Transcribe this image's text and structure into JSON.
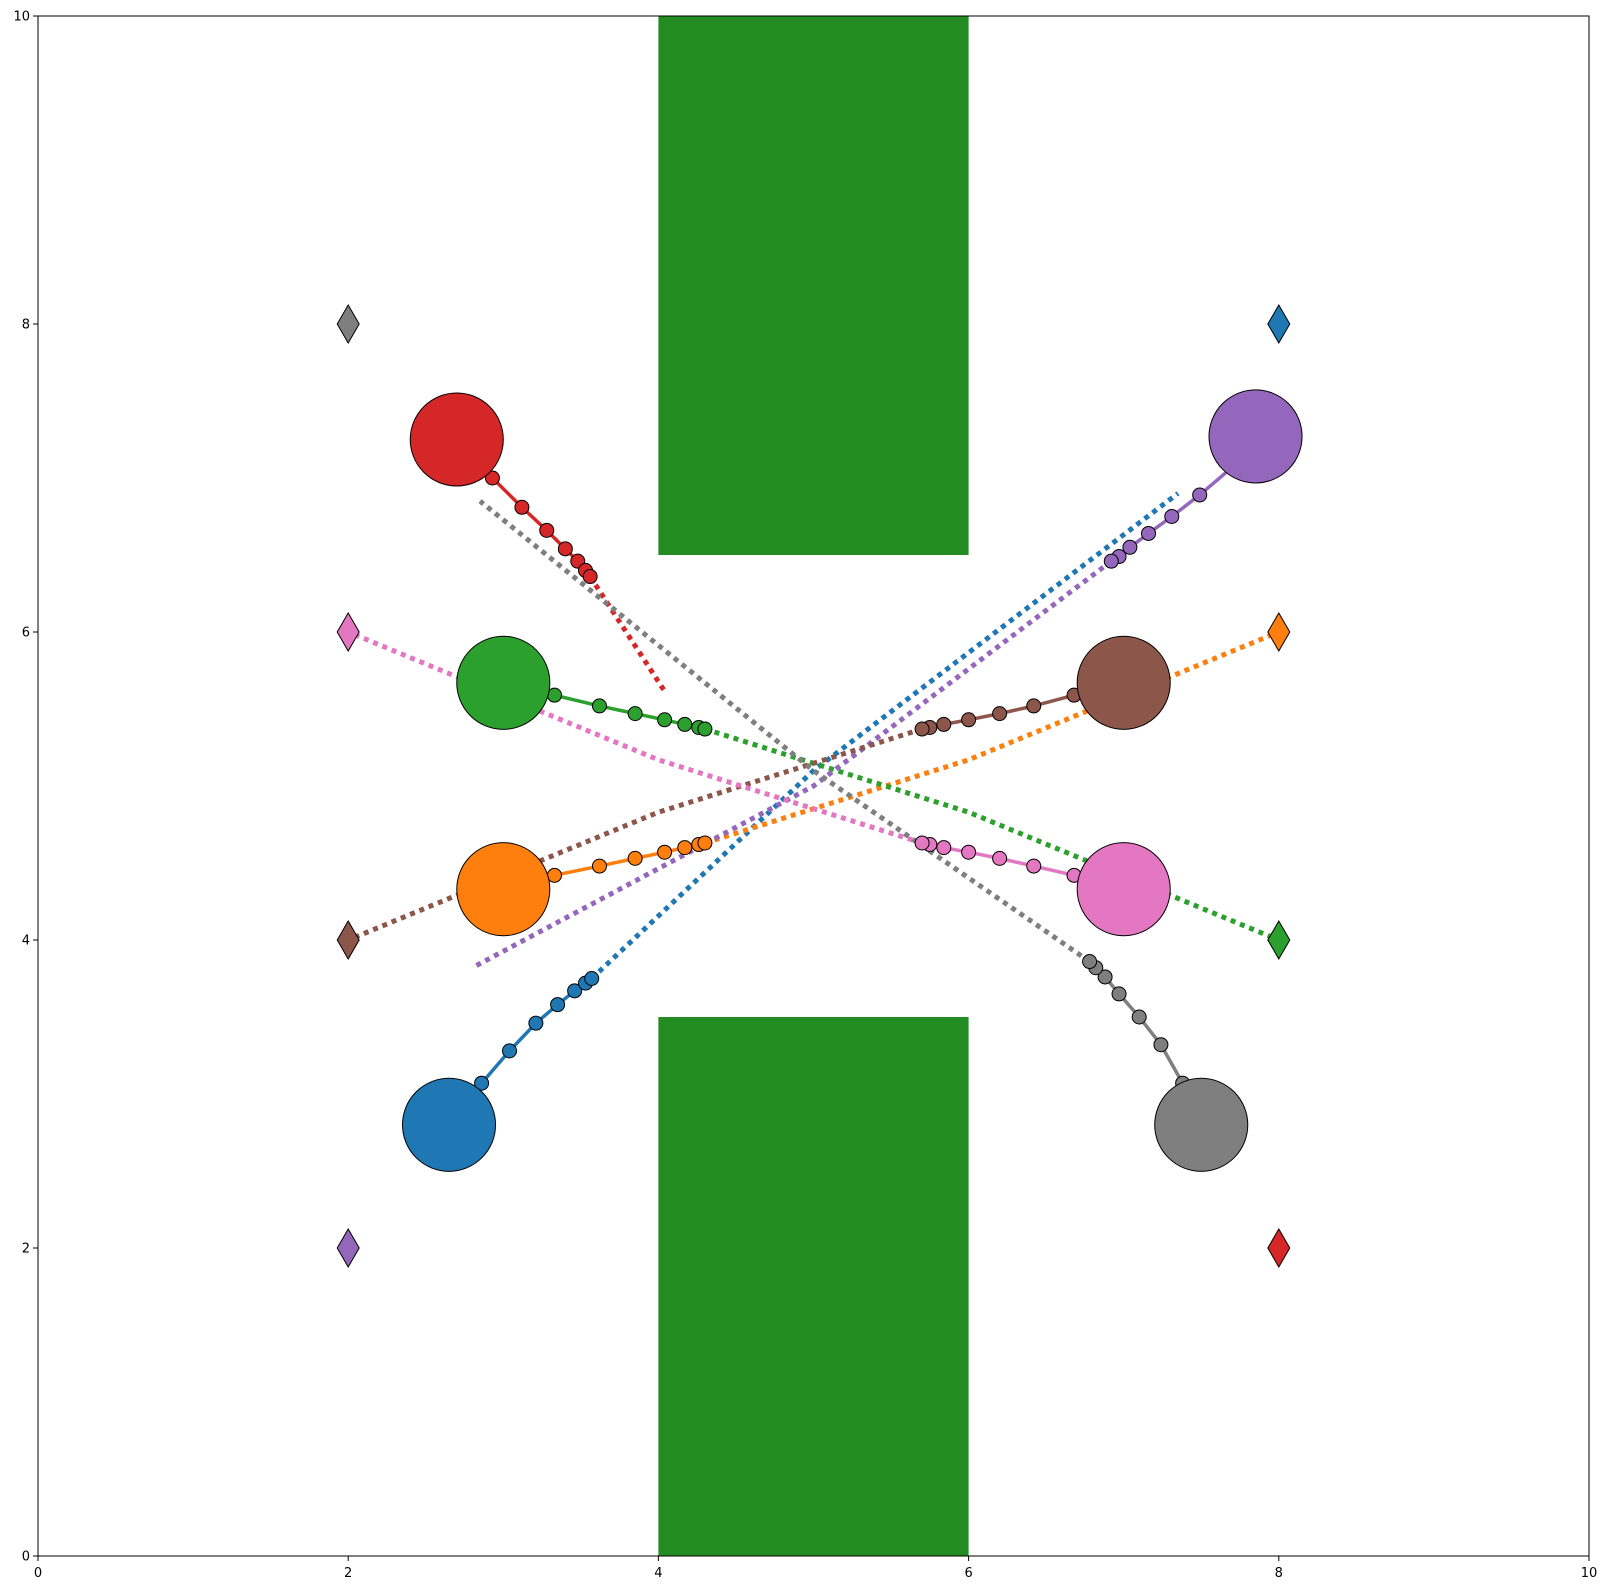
{
  "chart_data": {
    "type": "scatter",
    "title": "",
    "xlabel": "",
    "ylabel": "",
    "xlim": [
      0,
      10
    ],
    "ylim": [
      0,
      10
    ],
    "xticks": [
      "0",
      "2",
      "4",
      "6",
      "8",
      "10"
    ],
    "yticks": [
      "0",
      "2",
      "4",
      "6",
      "8",
      "10"
    ],
    "grid": false,
    "obstacles": [
      {
        "x": [
          4,
          6
        ],
        "y": [
          6.5,
          10
        ],
        "color": "#228B22"
      },
      {
        "x": [
          4,
          6
        ],
        "y": [
          0,
          3.5
        ],
        "color": "#228B22"
      }
    ],
    "agents": [
      {
        "color": "#1f77b4",
        "agent": {
          "x": 2.65,
          "y": 2.8,
          "radius": 0.3
        },
        "goal": {
          "x": 8,
          "y": 8
        },
        "trajectory": [
          [
            2.86,
            3.07
          ],
          [
            3.04,
            3.28
          ],
          [
            3.21,
            3.46
          ],
          [
            3.35,
            3.58
          ],
          [
            3.46,
            3.67
          ],
          [
            3.53,
            3.72
          ],
          [
            3.57,
            3.75
          ]
        ],
        "plan": [
          [
            3.57,
            3.75
          ],
          [
            5.0,
            5.1
          ],
          [
            7.35,
            6.9
          ]
        ]
      },
      {
        "color": "#ff7f0e",
        "agent": {
          "x": 3.0,
          "y": 4.33,
          "radius": 0.3
        },
        "goal": {
          "x": 8,
          "y": 6
        },
        "trajectory": [
          [
            3.33,
            4.42
          ],
          [
            3.62,
            4.48
          ],
          [
            3.85,
            4.53
          ],
          [
            4.04,
            4.57
          ],
          [
            4.17,
            4.6
          ],
          [
            4.26,
            4.62
          ],
          [
            4.3,
            4.63
          ]
        ],
        "plan": [
          [
            4.3,
            4.63
          ],
          [
            6.0,
            5.17
          ],
          [
            8,
            6
          ]
        ]
      },
      {
        "color": "#2ca02c",
        "agent": {
          "x": 3.0,
          "y": 5.67,
          "radius": 0.3
        },
        "goal": {
          "x": 8,
          "y": 4
        },
        "trajectory": [
          [
            3.33,
            5.59
          ],
          [
            3.62,
            5.52
          ],
          [
            3.85,
            5.47
          ],
          [
            4.04,
            5.43
          ],
          [
            4.17,
            5.4
          ],
          [
            4.26,
            5.38
          ],
          [
            4.3,
            5.37
          ]
        ],
        "plan": [
          [
            4.3,
            5.37
          ],
          [
            6.0,
            4.83
          ],
          [
            8,
            4
          ]
        ]
      },
      {
        "color": "#d62728",
        "agent": {
          "x": 2.7,
          "y": 7.25,
          "radius": 0.3
        },
        "goal": {
          "x": 8,
          "y": 2
        },
        "trajectory": [
          [
            2.93,
            7.0
          ],
          [
            3.12,
            6.81
          ],
          [
            3.28,
            6.66
          ],
          [
            3.4,
            6.54
          ],
          [
            3.48,
            6.46
          ],
          [
            3.53,
            6.4
          ],
          [
            3.56,
            6.36
          ]
        ],
        "plan": [
          [
            3.56,
            6.36
          ],
          [
            4.05,
            5.6
          ]
        ]
      },
      {
        "color": "#9467bd",
        "agent": {
          "x": 7.85,
          "y": 7.27,
          "radius": 0.3
        },
        "goal": {
          "x": 2,
          "y": 2
        },
        "trajectory": [
          [
            7.7,
            7.07
          ],
          [
            7.49,
            6.89
          ],
          [
            7.31,
            6.75
          ],
          [
            7.16,
            6.64
          ],
          [
            7.04,
            6.55
          ],
          [
            6.97,
            6.49
          ],
          [
            6.92,
            6.46
          ]
        ],
        "plan": [
          [
            6.92,
            6.46
          ],
          [
            5.0,
            5.0
          ],
          [
            2.8,
            3.82
          ]
        ]
      },
      {
        "color": "#8c564b",
        "agent": {
          "x": 7.0,
          "y": 5.67,
          "radius": 0.3
        },
        "goal": {
          "x": 2,
          "y": 4
        },
        "trajectory": [
          [
            6.68,
            5.59
          ],
          [
            6.42,
            5.52
          ],
          [
            6.2,
            5.47
          ],
          [
            6.0,
            5.43
          ],
          [
            5.84,
            5.4
          ],
          [
            5.75,
            5.38
          ],
          [
            5.7,
            5.37
          ]
        ],
        "plan": [
          [
            5.7,
            5.37
          ],
          [
            4.0,
            4.83
          ],
          [
            2,
            4
          ]
        ]
      },
      {
        "color": "#e377c2",
        "agent": {
          "x": 7.0,
          "y": 4.33,
          "radius": 0.3
        },
        "goal": {
          "x": 2,
          "y": 6
        },
        "trajectory": [
          [
            6.68,
            4.42
          ],
          [
            6.42,
            4.48
          ],
          [
            6.2,
            4.53
          ],
          [
            6.0,
            4.57
          ],
          [
            5.84,
            4.6
          ],
          [
            5.75,
            4.62
          ],
          [
            5.7,
            4.63
          ]
        ],
        "plan": [
          [
            5.7,
            4.63
          ],
          [
            4.0,
            5.17
          ],
          [
            2,
            6
          ]
        ]
      },
      {
        "color": "#7f7f7f",
        "agent": {
          "x": 7.5,
          "y": 2.8,
          "radius": 0.3
        },
        "goal": {
          "x": 2,
          "y": 8
        },
        "trajectory": [
          [
            7.38,
            3.07
          ],
          [
            7.24,
            3.32
          ],
          [
            7.1,
            3.5
          ],
          [
            6.97,
            3.65
          ],
          [
            6.88,
            3.76
          ],
          [
            6.82,
            3.82
          ],
          [
            6.78,
            3.86
          ]
        ],
        "plan": [
          [
            6.78,
            3.86
          ],
          [
            5.0,
            5.1
          ],
          [
            2.85,
            6.85
          ]
        ]
      }
    ]
  }
}
